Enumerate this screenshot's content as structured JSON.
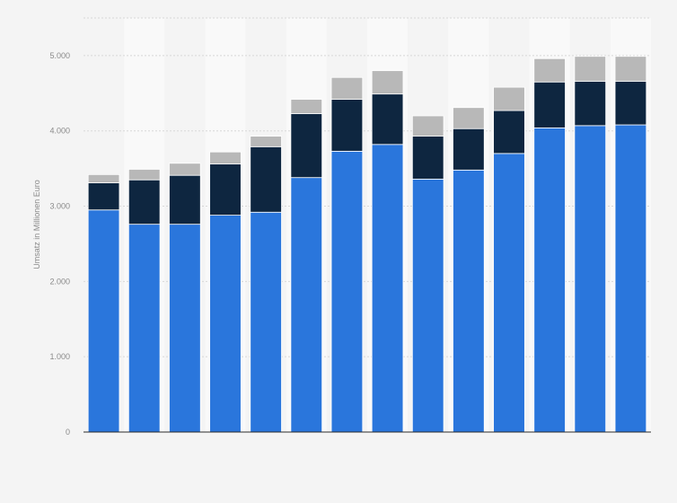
{
  "chart_data": {
    "type": "bar",
    "stacked": true,
    "title": "",
    "xlabel": "",
    "ylabel": "Umsatz in Millionen Euro",
    "ylim": [
      0,
      5500
    ],
    "yticks": [
      0,
      1000,
      2000,
      3000,
      4000,
      5000
    ],
    "ytick_labels": [
      "0",
      "1.000",
      "2.000",
      "3.000",
      "4.000",
      "5.000"
    ],
    "categories": [
      "",
      "",
      "",
      "",
      "",
      "",
      "",
      "",
      "",
      "",
      "",
      "",
      "",
      ""
    ],
    "grid": true,
    "series": [
      {
        "color": "#2a76dc",
        "values": [
          2950,
          2760,
          2760,
          2880,
          2920,
          3380,
          3730,
          3820,
          3360,
          3480,
          3700,
          4040,
          4070,
          4080
        ]
      },
      {
        "color": "#0e2640",
        "values": [
          360,
          590,
          650,
          680,
          870,
          850,
          690,
          670,
          570,
          550,
          570,
          610,
          590,
          580
        ]
      },
      {
        "color": "#b8b8b8",
        "values": [
          110,
          140,
          160,
          160,
          140,
          190,
          290,
          310,
          270,
          280,
          310,
          310,
          330,
          330
        ]
      }
    ]
  }
}
